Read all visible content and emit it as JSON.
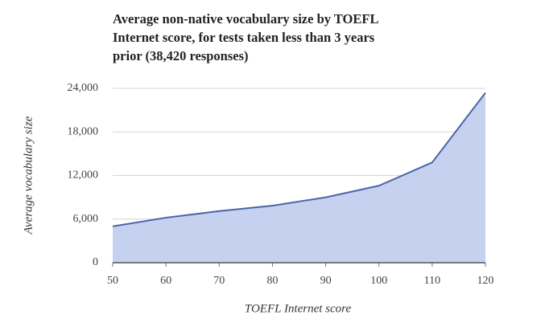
{
  "chart_data": {
    "type": "area",
    "title": "Average non-native vocabulary size by TOEFL Internet score, for tests taken less than 3 years prior (38,420 responses)",
    "x_label": "TOEFL Internet score",
    "y_label": "Average vocabulary size",
    "x": [
      50,
      60,
      70,
      80,
      90,
      100,
      110,
      120
    ],
    "series": [
      {
        "name": "Average vocabulary size",
        "color": "#4a65a8",
        "fill": "#c6d1f0",
        "values": [
          5000,
          6200,
          7100,
          7850,
          9000,
          10600,
          13800,
          23400
        ]
      }
    ],
    "xlim": [
      50,
      120
    ],
    "xticks": [
      50,
      60,
      70,
      80,
      90,
      100,
      110,
      120
    ],
    "ylim": [
      0,
      24000
    ],
    "yticks": [
      0,
      {
        "value": 6000,
        "label": "6,000"
      },
      {
        "value": 12000,
        "label": "12,000"
      },
      {
        "value": 18000,
        "label": "18,000"
      },
      {
        "value": 24000,
        "label": "24,000"
      }
    ],
    "grid": true
  }
}
